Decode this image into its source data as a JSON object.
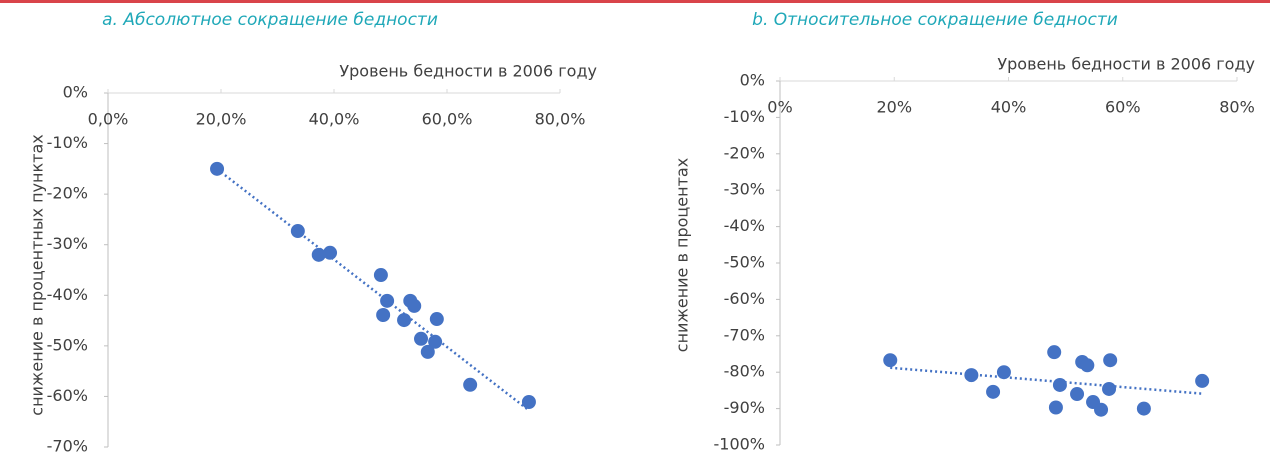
{
  "chart_data": [
    {
      "type": "scatter",
      "title": "a. Абсолютное сокращение бедности",
      "x_label": "Уровень бедности в 2006 году",
      "y_label": "снижение в процентных пунктах",
      "color": "#4472c4",
      "x": [
        19.3,
        33.6,
        37.3,
        39.3,
        48.3,
        49.4,
        48.7,
        53.5,
        54.2,
        52.4,
        58.2,
        55.4,
        57.9,
        56.6,
        64.1,
        74.5
      ],
      "values": [
        -15.0,
        -27.3,
        -32.0,
        -31.6,
        -36.0,
        -41.1,
        -43.9,
        -41.1,
        -42.1,
        -44.9,
        -44.7,
        -48.6,
        -49.2,
        -51.2,
        -57.7,
        -61.1
      ],
      "xlim": [
        0,
        80
      ],
      "xticks": [
        {
          "value": 0,
          "label": "0,0%"
        },
        {
          "value": 20,
          "label": "20,0%"
        },
        {
          "value": 40,
          "label": "40,0%"
        },
        {
          "value": 60,
          "label": "60,0%"
        },
        {
          "value": 80,
          "label": "80,0%"
        }
      ],
      "ylim": [
        -70,
        0
      ],
      "yticks": [
        {
          "value": 0,
          "label": "0%"
        },
        {
          "value": -10,
          "label": "-10%"
        },
        {
          "value": -20,
          "label": "-20%"
        },
        {
          "value": -30,
          "label": "-30%"
        },
        {
          "value": -40,
          "label": "-40%"
        },
        {
          "value": -50,
          "label": "-50%"
        },
        {
          "value": -60,
          "label": "-60%"
        },
        {
          "value": -70,
          "label": "-70%"
        }
      ],
      "trendline": true
    },
    {
      "type": "scatter",
      "title": "b. Относительное сокращение бедности",
      "x_label": "Уровень бедности в 2006 году",
      "y_label": "снижение в процентах",
      "color": "#4472c4",
      "x": [
        19.3,
        33.5,
        37.3,
        39.2,
        48.0,
        49.0,
        48.3,
        52.9,
        53.8,
        52.0,
        57.8,
        54.8,
        57.6,
        56.2,
        63.7,
        73.9
      ],
      "values": [
        -76.7,
        -80.8,
        -85.4,
        -80.0,
        -74.5,
        -83.5,
        -89.7,
        -77.2,
        -78.1,
        -86.0,
        -76.7,
        -88.2,
        -84.6,
        -90.3,
        -90.0,
        -82.4
      ],
      "xlim": [
        0,
        80
      ],
      "xticks": [
        {
          "value": 0,
          "label": "0%"
        },
        {
          "value": 20,
          "label": "20%"
        },
        {
          "value": 40,
          "label": "40%"
        },
        {
          "value": 60,
          "label": "60%"
        },
        {
          "value": 80,
          "label": "80%"
        }
      ],
      "ylim": [
        -100,
        0
      ],
      "yticks": [
        {
          "value": 0,
          "label": "0%"
        },
        {
          "value": -10,
          "label": "-10%"
        },
        {
          "value": -20,
          "label": "-20%"
        },
        {
          "value": -30,
          "label": "-30%"
        },
        {
          "value": -40,
          "label": "-40%"
        },
        {
          "value": -50,
          "label": "-50%"
        },
        {
          "value": -60,
          "label": "-60%"
        },
        {
          "value": -70,
          "label": "-70%"
        },
        {
          "value": -80,
          "label": "-80%"
        },
        {
          "value": -90,
          "label": "-90%"
        },
        {
          "value": -100,
          "label": "-100%"
        }
      ],
      "trendline": true
    }
  ]
}
